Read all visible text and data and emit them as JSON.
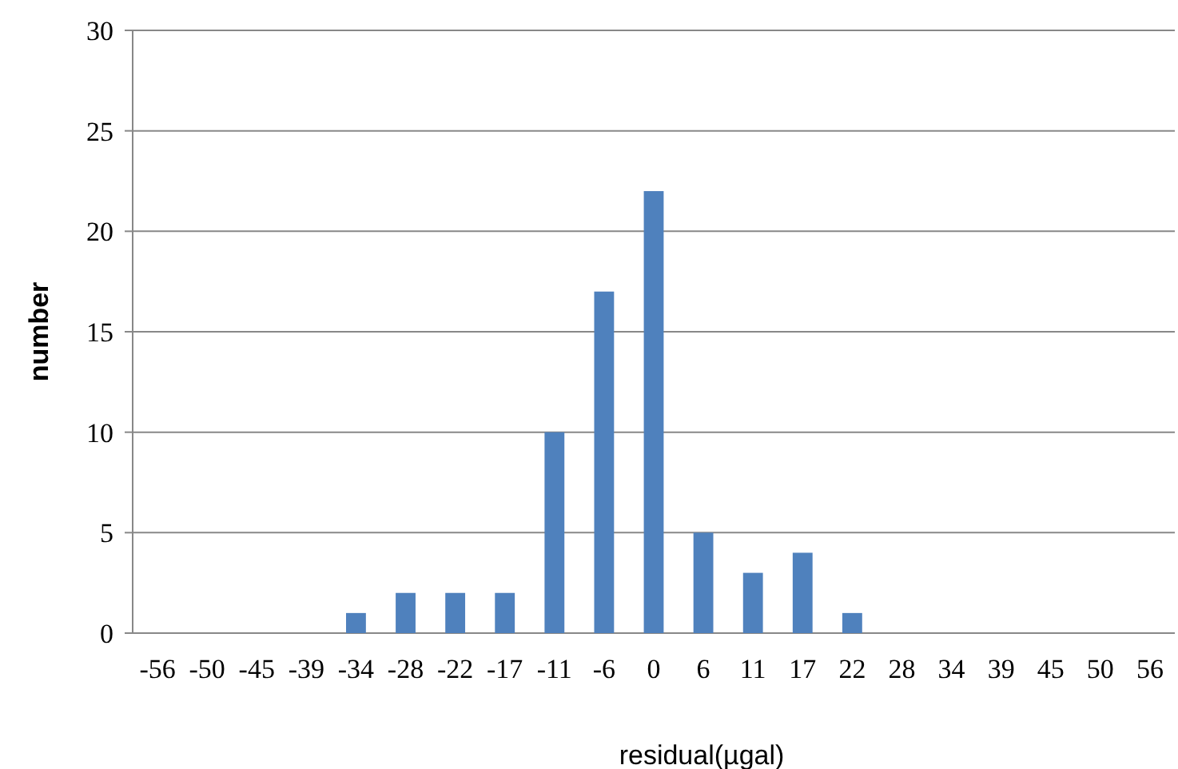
{
  "chart_data": {
    "type": "bar",
    "xlabel": "residual(µgal)",
    "ylabel": "number",
    "categories": [
      "-56",
      "-50",
      "-45",
      "-39",
      "-34",
      "-28",
      "-22",
      "-17",
      "-11",
      "-6",
      "0",
      "6",
      "11",
      "17",
      "22",
      "28",
      "34",
      "39",
      "45",
      "50",
      "56"
    ],
    "values": [
      0,
      0,
      0,
      0,
      1,
      2,
      2,
      2,
      10,
      17,
      22,
      5,
      3,
      4,
      1,
      0,
      0,
      0,
      0,
      0,
      0
    ],
    "color": "#4f81bd",
    "ylim": [
      0,
      30
    ],
    "yticks": [
      0,
      5,
      10,
      15,
      20,
      25,
      30
    ],
    "grid": "y"
  }
}
